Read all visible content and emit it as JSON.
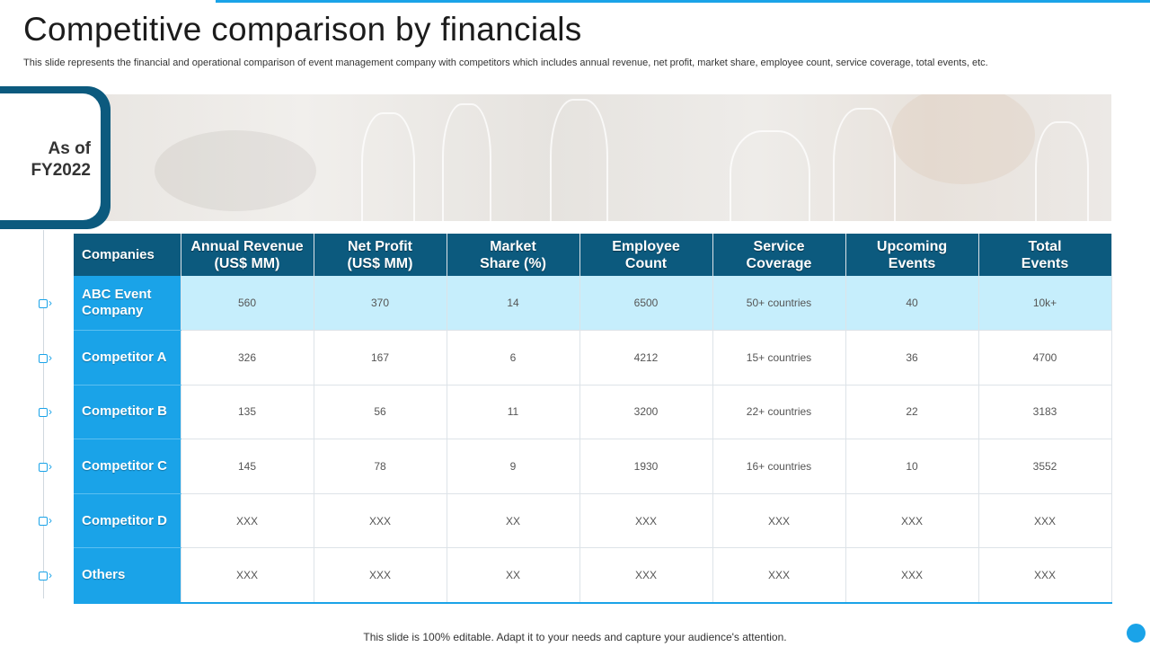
{
  "title": "Competitive comparison by financials",
  "subtitle": "This slide represents the financial and operational comparison of event management company with competitors which includes annual revenue, net profit, market share, employee count, service coverage, total events, etc.",
  "as_of": {
    "line1": "As of",
    "line2": "FY2022"
  },
  "table": {
    "headers": [
      {
        "line1": "Companies",
        "line2": ""
      },
      {
        "line1": "Annual Revenue",
        "line2": "(US$ MM)"
      },
      {
        "line1": "Net Profit",
        "line2": "(US$ MM)"
      },
      {
        "line1": "Market",
        "line2": "Share (%)"
      },
      {
        "line1": "Employee",
        "line2": "Count"
      },
      {
        "line1": "Service",
        "line2": "Coverage"
      },
      {
        "line1": "Upcoming",
        "line2": "Events"
      },
      {
        "line1": "Total",
        "line2": "Events"
      }
    ],
    "rows": [
      {
        "label_line1": "ABC Event",
        "label_line2": "Company",
        "cells": [
          "560",
          "370",
          "14",
          "6500",
          "50+ countries",
          "40",
          "10k+"
        ]
      },
      {
        "label_line1": "Competitor A",
        "label_line2": "",
        "cells": [
          "326",
          "167",
          "6",
          "4212",
          "15+ countries",
          "36",
          "4700"
        ]
      },
      {
        "label_line1": "Competitor B",
        "label_line2": "",
        "cells": [
          "135",
          "56",
          "11",
          "3200",
          "22+ countries",
          "22",
          "3183"
        ]
      },
      {
        "label_line1": "Competitor C",
        "label_line2": "",
        "cells": [
          "145",
          "78",
          "9",
          "1930",
          "16+ countries",
          "10",
          "3552"
        ]
      },
      {
        "label_line1": "Competitor D",
        "label_line2": "",
        "cells": [
          "XXX",
          "XXX",
          "XX",
          "XXX",
          "XXX",
          "XXX",
          "XXX"
        ]
      },
      {
        "label_line1": "Others",
        "label_line2": "",
        "cells": [
          "XXX",
          "XXX",
          "XX",
          "XXX",
          "XXX",
          "XXX",
          "XXX"
        ]
      }
    ]
  },
  "footer": "This slide is 100% editable. Adapt it to your needs and capture your audience's attention.",
  "colors": {
    "dark_blue": "#0c5a7e",
    "accent_blue": "#1aa3e8",
    "highlight": "#c6eefc"
  },
  "icons": {
    "row_marker": "checkbox-arrow-icon"
  }
}
